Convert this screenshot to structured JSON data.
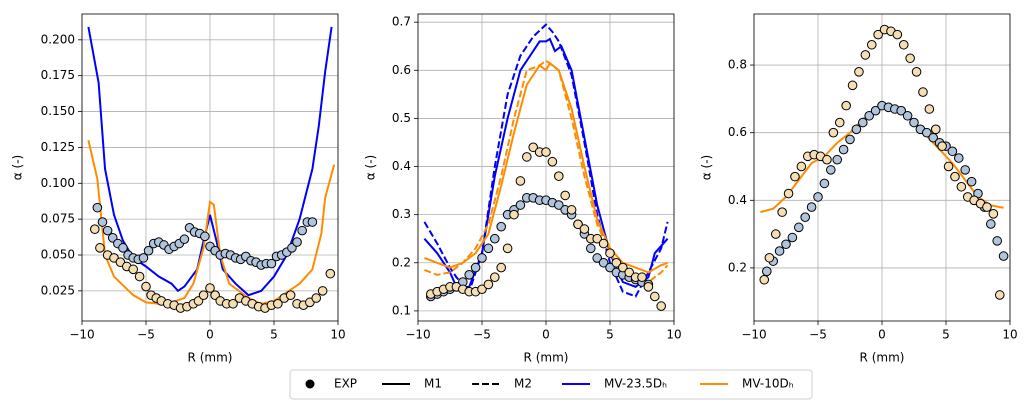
{
  "chart_data": [
    {
      "type": "line",
      "xlabel": "R (mm)",
      "ylabel": "α (-)",
      "xlim": [
        -10,
        10
      ],
      "xticks": [
        {
          "value": -10,
          "label": "−10"
        },
        {
          "value": -5,
          "label": "−5"
        },
        0,
        5,
        10
      ],
      "ylim": [
        0.004,
        0.218
      ],
      "yticks": [
        0.025,
        {
          "value": 0.05,
          "label": "0.050"
        },
        0.075,
        {
          "value": 0.1,
          "label": "0.100"
        },
        0.125,
        {
          "value": 0.15,
          "label": "0.150"
        },
        0.175,
        {
          "value": 0.2,
          "label": "0.200"
        }
      ],
      "grid": true,
      "series": [
        {
          "style": "solid",
          "color": "#0000ff",
          "x": [
            -9.5,
            -8.7,
            -8.2,
            -7.5,
            -6.8,
            -6,
            -5,
            -4,
            -3,
            -2.5,
            -2,
            -1,
            -0.5,
            0,
            0.5,
            1,
            2,
            3,
            4,
            5,
            6,
            7,
            8,
            8.5,
            9,
            9.5
          ],
          "values": [
            0.209,
            0.17,
            0.11,
            0.078,
            0.06,
            0.048,
            0.042,
            0.035,
            0.03,
            0.025,
            0.028,
            0.04,
            0.06,
            0.078,
            0.06,
            0.04,
            0.03,
            0.022,
            0.025,
            0.035,
            0.05,
            0.075,
            0.11,
            0.14,
            0.178,
            0.209
          ]
        },
        {
          "style": "solid",
          "color": "#ff8c00",
          "x": [
            -9.5,
            -8.8,
            -8.2,
            -7.5,
            -6,
            -5,
            -4,
            -3,
            -2,
            -1.3,
            -0.5,
            0,
            0.3,
            0.8,
            1.5,
            3,
            4,
            5,
            6,
            7,
            8,
            8.7,
            9,
            9.7
          ],
          "values": [
            0.13,
            0.103,
            0.05,
            0.035,
            0.022,
            0.017,
            0.016,
            0.017,
            0.02,
            0.03,
            0.055,
            0.087,
            0.085,
            0.05,
            0.03,
            0.02,
            0.016,
            0.018,
            0.024,
            0.03,
            0.04,
            0.065,
            0.09,
            0.113
          ]
        },
        {
          "style": "points",
          "color": "#b0c4de",
          "x": [
            -8.8,
            -8.4,
            -8,
            -7.6,
            -7.2,
            -6.8,
            -6.4,
            -6,
            -5.6,
            -5.2,
            -4.8,
            -4.4,
            -4,
            -3.6,
            -3.2,
            -2.8,
            -2.4,
            -2,
            -1.6,
            -1.2,
            -0.8,
            -0.4,
            0,
            0.4,
            0.8,
            1.2,
            1.6,
            2,
            2.4,
            2.8,
            3.2,
            3.6,
            4,
            4.4,
            4.8,
            5.2,
            5.6,
            6,
            6.4,
            6.8,
            7.2,
            7.6,
            8
          ],
          "values": [
            0.083,
            0.073,
            0.067,
            0.062,
            0.058,
            0.055,
            0.05,
            0.048,
            0.047,
            0.048,
            0.053,
            0.058,
            0.059,
            0.057,
            0.054,
            0.056,
            0.058,
            0.061,
            0.069,
            0.066,
            0.065,
            0.063,
            0.056,
            0.053,
            0.05,
            0.051,
            0.05,
            0.048,
            0.047,
            0.049,
            0.046,
            0.045,
            0.043,
            0.044,
            0.044,
            0.049,
            0.05,
            0.052,
            0.055,
            0.059,
            0.067,
            0.073,
            0.073
          ]
        },
        {
          "style": "points",
          "color": "#f5deb3",
          "x": [
            -9,
            -8.6,
            -8,
            -7.5,
            -7,
            -6.5,
            -6,
            -5.5,
            -5,
            -4.6,
            -4.2,
            -3.8,
            -3.3,
            -2.8,
            -2.3,
            -1.8,
            -1.3,
            -0.9,
            -0.5,
            0,
            0.4,
            0.8,
            1.3,
            1.8,
            2.3,
            2.8,
            3.3,
            3.8,
            4.3,
            4.8,
            5.3,
            5.8,
            6.3,
            6.8,
            7.3,
            7.8,
            8.3,
            8.8,
            9.4
          ],
          "values": [
            0.068,
            0.055,
            0.05,
            0.048,
            0.045,
            0.042,
            0.04,
            0.035,
            0.028,
            0.022,
            0.02,
            0.018,
            0.016,
            0.015,
            0.013,
            0.014,
            0.016,
            0.018,
            0.022,
            0.027,
            0.022,
            0.018,
            0.016,
            0.016,
            0.02,
            0.018,
            0.016,
            0.014,
            0.013,
            0.015,
            0.016,
            0.02,
            0.022,
            0.016,
            0.015,
            0.017,
            0.02,
            0.025,
            0.037
          ]
        }
      ]
    },
    {
      "type": "line",
      "xlabel": "R (mm)",
      "ylabel": "α (-)",
      "xlim": [
        -10,
        10
      ],
      "xticks": [
        {
          "value": -10,
          "label": "−10"
        },
        {
          "value": -5,
          "label": "−5"
        },
        0,
        5,
        10
      ],
      "ylim": [
        0.079,
        0.717
      ],
      "yticks": [
        0.1,
        0.2,
        0.3,
        0.4,
        0.5,
        0.6,
        0.7
      ],
      "grid": true,
      "series": [
        {
          "style": "solid",
          "color": "#0000ff",
          "x": [
            -9.5,
            -8.5,
            -7.5,
            -7,
            -6,
            -5,
            -4,
            -3,
            -2,
            -1,
            -0.5,
            0,
            0.3,
            0.7,
            1.2,
            2,
            3,
            4,
            5,
            6,
            7,
            8,
            8.5,
            9.5
          ],
          "values": [
            0.25,
            0.22,
            0.18,
            0.15,
            0.15,
            0.22,
            0.38,
            0.5,
            0.6,
            0.64,
            0.66,
            0.66,
            0.665,
            0.64,
            0.65,
            0.6,
            0.46,
            0.32,
            0.22,
            0.16,
            0.15,
            0.17,
            0.22,
            0.25
          ]
        },
        {
          "style": "dashed",
          "color": "#0000ff",
          "x": [
            -9.5,
            -8.5,
            -7.5,
            -7,
            -6,
            -5,
            -4,
            -3,
            -2,
            -1,
            0,
            0.5,
            1,
            2,
            3,
            4,
            5,
            6,
            7,
            8,
            9,
            9.5
          ],
          "values": [
            0.285,
            0.24,
            0.19,
            0.17,
            0.14,
            0.22,
            0.4,
            0.55,
            0.63,
            0.67,
            0.695,
            0.68,
            0.66,
            0.59,
            0.45,
            0.3,
            0.2,
            0.14,
            0.13,
            0.18,
            0.23,
            0.285
          ]
        },
        {
          "style": "solid",
          "color": "#ff8c00",
          "x": [
            -9.5,
            -8.5,
            -7.5,
            -6.5,
            -5.5,
            -4.5,
            -3.5,
            -2.5,
            -1.5,
            -0.5,
            0,
            0.3,
            1,
            2,
            3,
            4,
            5,
            6,
            7,
            8,
            9,
            9.5
          ],
          "values": [
            0.21,
            0.2,
            0.19,
            0.2,
            0.22,
            0.26,
            0.36,
            0.47,
            0.57,
            0.61,
            0.6,
            0.615,
            0.6,
            0.52,
            0.4,
            0.29,
            0.23,
            0.2,
            0.19,
            0.18,
            0.195,
            0.2
          ]
        },
        {
          "style": "dashed",
          "color": "#ff8c00",
          "x": [
            -9.5,
            -8.5,
            -7.5,
            -6.5,
            -5.5,
            -4.5,
            -3.5,
            -2.5,
            -1.5,
            -0.5,
            0,
            1,
            2,
            3,
            4,
            5,
            6,
            7,
            8,
            9,
            9.5
          ],
          "values": [
            0.185,
            0.175,
            0.18,
            0.2,
            0.23,
            0.28,
            0.38,
            0.5,
            0.6,
            0.61,
            0.62,
            0.6,
            0.5,
            0.38,
            0.28,
            0.22,
            0.18,
            0.16,
            0.16,
            0.18,
            0.195
          ]
        },
        {
          "style": "points",
          "color": "#b0c4de",
          "x": [
            -9,
            -8.5,
            -8,
            -7.5,
            -7,
            -6.5,
            -6,
            -5.5,
            -5,
            -4.5,
            -4,
            -3.5,
            -3,
            -2.5,
            -2,
            -1.5,
            -1,
            -0.5,
            0,
            0.5,
            1,
            1.5,
            2,
            2.5,
            3,
            3.5,
            4,
            4.5,
            5,
            5.5,
            6,
            6.5,
            7,
            7.5,
            8
          ],
          "values": [
            0.13,
            0.135,
            0.14,
            0.145,
            0.15,
            0.16,
            0.175,
            0.19,
            0.21,
            0.23,
            0.25,
            0.275,
            0.3,
            0.31,
            0.32,
            0.335,
            0.335,
            0.33,
            0.33,
            0.325,
            0.32,
            0.31,
            0.3,
            0.28,
            0.26,
            0.23,
            0.21,
            0.2,
            0.19,
            0.18,
            0.175,
            0.17,
            0.165,
            0.16,
            0.155
          ]
        },
        {
          "style": "points",
          "color": "#f5deb3",
          "x": [
            -9,
            -8.5,
            -8,
            -7.5,
            -7,
            -6.5,
            -6,
            -5.5,
            -5,
            -4.5,
            -4,
            -3.5,
            -3,
            -2.5,
            -2,
            -1.5,
            -1,
            -0.5,
            0,
            0.5,
            1,
            1.5,
            2,
            2.5,
            3,
            3.5,
            4,
            4.5,
            5,
            5.5,
            6,
            6.5,
            7,
            7.5,
            8,
            8.5,
            9
          ],
          "values": [
            0.135,
            0.14,
            0.145,
            0.15,
            0.15,
            0.145,
            0.14,
            0.14,
            0.145,
            0.155,
            0.17,
            0.19,
            0.23,
            0.3,
            0.37,
            0.42,
            0.44,
            0.43,
            0.43,
            0.41,
            0.38,
            0.34,
            0.31,
            0.28,
            0.27,
            0.25,
            0.25,
            0.24,
            0.22,
            0.2,
            0.19,
            0.18,
            0.17,
            0.17,
            0.15,
            0.13,
            0.11
          ]
        }
      ]
    },
    {
      "type": "line",
      "xlabel": "R (mm)",
      "ylabel": "α (-)",
      "xlim": [
        -10,
        10
      ],
      "xticks": [
        {
          "value": -10,
          "label": "−10"
        },
        {
          "value": -5,
          "label": "−5"
        },
        0,
        5,
        10
      ],
      "ylim": [
        0.043,
        0.951
      ],
      "yticks": [
        0.2,
        0.4,
        0.6,
        0.8
      ],
      "grid": true,
      "series": [
        {
          "style": "solid",
          "color": "#ff8c00",
          "x": [
            -9.5,
            -8.5,
            -7.5,
            -6.5,
            -5.5,
            -4.5,
            -3.5,
            -2.5,
            -1.5,
            -0.5,
            0,
            0.5,
            1.5,
            2.5,
            3.5,
            4.5,
            5.5,
            6.5,
            7.5,
            8.5,
            9.5
          ],
          "values": [
            0.365,
            0.375,
            0.41,
            0.46,
            0.51,
            0.53,
            0.57,
            0.6,
            0.64,
            0.67,
            0.685,
            0.675,
            0.66,
            0.63,
            0.59,
            0.55,
            0.51,
            0.46,
            0.41,
            0.385,
            0.378
          ]
        },
        {
          "style": "points",
          "color": "#b0c4de",
          "x": [
            -9,
            -8.5,
            -8,
            -7.5,
            -7,
            -6.5,
            -6,
            -5.5,
            -5,
            -4.5,
            -4,
            -3.5,
            -3,
            -2.5,
            -2,
            -1.5,
            -1,
            -0.5,
            0,
            0.5,
            1,
            1.5,
            2,
            2.5,
            3,
            3.5,
            4,
            4.5,
            5,
            5.5,
            6,
            6.5,
            7,
            7.5,
            8,
            8.5,
            9,
            9.5
          ],
          "values": [
            0.19,
            0.22,
            0.25,
            0.27,
            0.29,
            0.32,
            0.35,
            0.38,
            0.41,
            0.45,
            0.49,
            0.52,
            0.55,
            0.58,
            0.61,
            0.63,
            0.65,
            0.665,
            0.68,
            0.675,
            0.67,
            0.665,
            0.65,
            0.63,
            0.61,
            0.6,
            0.585,
            0.57,
            0.56,
            0.545,
            0.525,
            0.49,
            0.455,
            0.42,
            0.38,
            0.33,
            0.28,
            0.235
          ]
        },
        {
          "style": "points",
          "color": "#f5deb3",
          "x": [
            -9.2,
            -8.8,
            -8.3,
            -7.8,
            -7.3,
            -6.8,
            -6.3,
            -5.8,
            -5.3,
            -4.8,
            -4.3,
            -3.8,
            -3.3,
            -2.8,
            -2.3,
            -1.8,
            -1.3,
            -0.8,
            -0.3,
            0.2,
            0.7,
            1.2,
            1.7,
            2.2,
            2.7,
            3.2,
            3.7,
            4.2,
            4.7,
            5.2,
            5.7,
            6.2,
            6.7,
            7.2,
            7.7,
            8.2,
            8.7,
            9.2
          ],
          "values": [
            0.165,
            0.23,
            0.3,
            0.365,
            0.42,
            0.47,
            0.5,
            0.53,
            0.535,
            0.53,
            0.52,
            0.6,
            0.63,
            0.68,
            0.74,
            0.78,
            0.83,
            0.86,
            0.89,
            0.905,
            0.9,
            0.89,
            0.86,
            0.82,
            0.78,
            0.72,
            0.67,
            0.61,
            0.56,
            0.5,
            0.47,
            0.44,
            0.41,
            0.4,
            0.39,
            0.38,
            0.36,
            0.12
          ]
        }
      ]
    }
  ],
  "legend": {
    "entries": [
      {
        "label": "EXP",
        "style": "points",
        "color": "#000000"
      },
      {
        "label": "M1",
        "style": "solid",
        "color": "#000000"
      },
      {
        "label": "M2",
        "style": "dashed",
        "color": "#000000"
      },
      {
        "label": "MV-23.5Dₕ",
        "style": "solid",
        "color": "#0000ff"
      },
      {
        "label": "MV-10Dₕ",
        "style": "solid",
        "color": "#ff8c00"
      }
    ]
  }
}
